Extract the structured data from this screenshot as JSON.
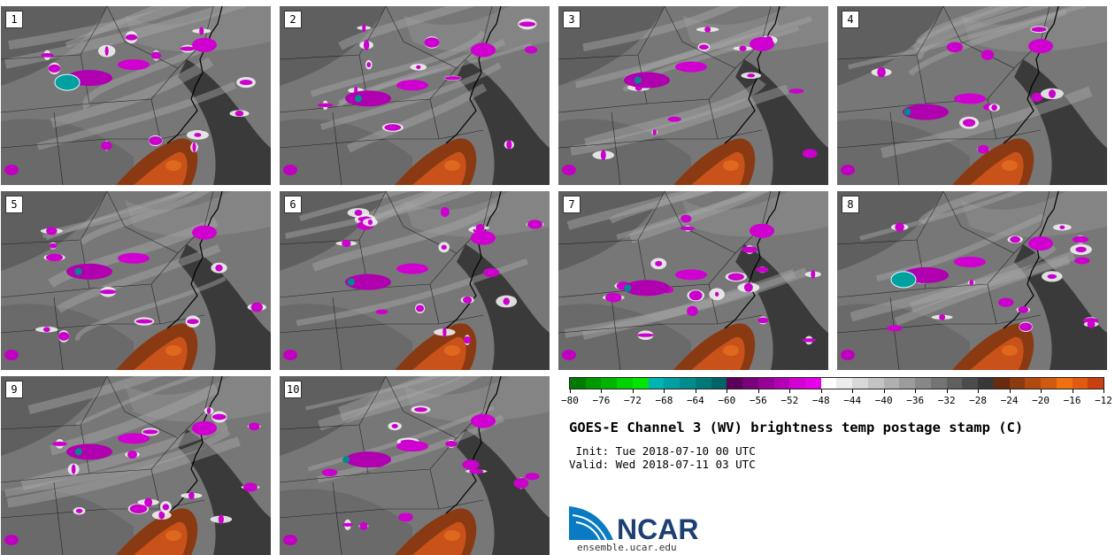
{
  "panels": [
    {
      "label": "1"
    },
    {
      "label": "2"
    },
    {
      "label": "3"
    },
    {
      "label": "4"
    },
    {
      "label": "5"
    },
    {
      "label": "6"
    },
    {
      "label": "7"
    },
    {
      "label": "8"
    },
    {
      "label": "9"
    },
    {
      "label": "10"
    }
  ],
  "colorbar": {
    "ticks": [
      "−80",
      "−76",
      "−72",
      "−68",
      "−64",
      "−60",
      "−56",
      "−52",
      "−48",
      "−44",
      "−40",
      "−36",
      "−32",
      "−28",
      "−24",
      "−20",
      "−16",
      "−12"
    ],
    "colors": [
      "#007a00",
      "#009a00",
      "#00b400",
      "#00d200",
      "#00e600",
      "#00b4b4",
      "#00a0a0",
      "#008c8c",
      "#007878",
      "#006464",
      "#5a005a",
      "#780078",
      "#960096",
      "#b400b4",
      "#d200d2",
      "#e600e6",
      "#ffffff",
      "#ececec",
      "#d8d8d8",
      "#c4c4c4",
      "#b0b0b0",
      "#9c9c9c",
      "#888888",
      "#747474",
      "#606060",
      "#4c4c4c",
      "#383838",
      "#6a2a10",
      "#8c3a10",
      "#b04a10",
      "#d05a10",
      "#f07010",
      "#e05a10",
      "#c84010"
    ]
  },
  "title": "GOES-E Channel 3 (WV) brightness temp postage stamp (C)",
  "init_line": " Init: Tue 2018-07-10 00 UTC",
  "valid_line": "Valid: Wed 2018-07-11 03 UTC",
  "logo": {
    "name": "NCAR",
    "url": "ensemble.ucar.edu"
  }
}
